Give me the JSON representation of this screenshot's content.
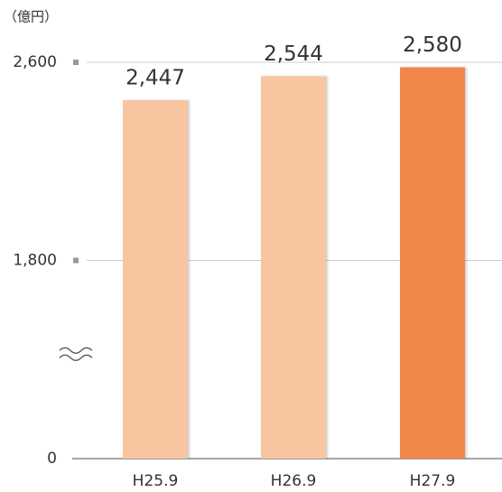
{
  "chart_data": {
    "type": "bar",
    "unit_label": "（億円）",
    "categories": [
      "H25.9",
      "H26.9",
      "H27.9"
    ],
    "values": [
      2447,
      2544,
      2580
    ],
    "value_labels": [
      "2,447",
      "2,544",
      "2,580"
    ],
    "colors": [
      "#f7c5a0",
      "#f7c5a0",
      "#f0874a"
    ],
    "ylim": [
      0,
      2600
    ],
    "yticks": [
      0,
      {
        "value": 1800,
        "label": "1,800"
      },
      {
        "value": 2600,
        "label": "2,600"
      }
    ],
    "axis_break": true,
    "grid": true
  }
}
